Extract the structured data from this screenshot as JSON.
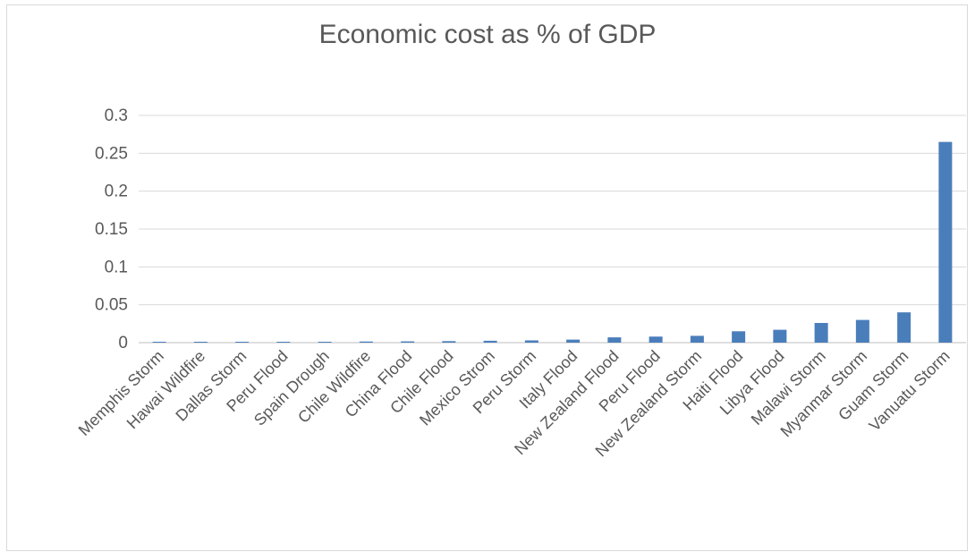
{
  "chart_data": {
    "type": "bar",
    "title": "Economic cost as % of GDP",
    "categories": [
      "Memphis Storm",
      "Hawai Wildfire",
      "Dallas  Storm",
      "Peru Flood",
      "Spain Drough",
      "Chile Wildfire",
      "China Flood",
      "Chile Flood",
      "Mexico Strom",
      "Peru Storm",
      "Italy Flood",
      "New Zealand Flood",
      "Peru Flood",
      "New Zealand Storm",
      "Haiti Flood",
      "Libya Flood",
      "Malawi Storm",
      "Myanmar Storm",
      "Guam Storm",
      "Vanuatu Storm"
    ],
    "values": [
      0.0003,
      0.0004,
      0.0005,
      0.0009,
      0.001,
      0.0015,
      0.0017,
      0.002,
      0.0025,
      0.003,
      0.004,
      0.007,
      0.008,
      0.009,
      0.015,
      0.017,
      0.026,
      0.03,
      0.04,
      0.265
    ],
    "ylim": [
      0,
      0.3
    ],
    "yticks": [
      "0",
      "0.05",
      "0.1",
      "0.15",
      "0.2",
      "0.25",
      "0.3"
    ],
    "grid": true,
    "xlabel": "",
    "ylabel": "",
    "colors": {
      "bar": "#4a7ebb",
      "grid": "#d9d9d9",
      "axis": "#bfbfbf",
      "text": "#595959"
    }
  }
}
